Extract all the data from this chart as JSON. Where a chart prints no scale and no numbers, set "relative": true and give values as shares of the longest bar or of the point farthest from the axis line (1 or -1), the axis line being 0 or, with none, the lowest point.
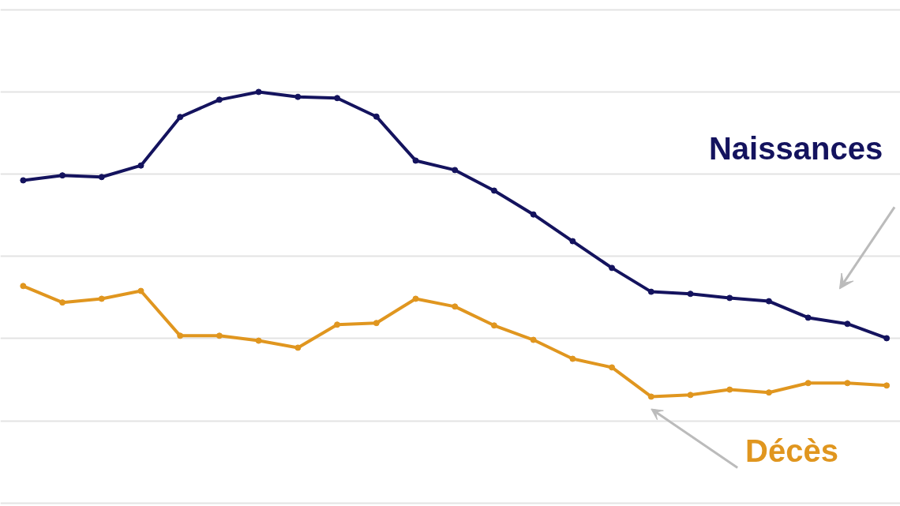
{
  "chart_data": {
    "type": "line",
    "relative": true,
    "grid": "y",
    "marker": "circle",
    "line_style": "solid",
    "categories": [
      null,
      null,
      null,
      null,
      null,
      null,
      null,
      null,
      null,
      null,
      null,
      null,
      null,
      null,
      null,
      null,
      null,
      null,
      null,
      null,
      null,
      null,
      null
    ],
    "series": [
      {
        "name": "Naissances",
        "color": "#14135e",
        "values": [
          0.785,
          0.797,
          0.793,
          0.821,
          0.939,
          0.981,
          1.0,
          0.988,
          0.985,
          0.94,
          0.833,
          0.81,
          0.76,
          0.702,
          0.637,
          0.572,
          0.514,
          0.509,
          0.499,
          0.491,
          0.451,
          0.436,
          0.401
        ]
      },
      {
        "name": "Décès",
        "color": "#e0961f",
        "values": [
          0.528,
          0.488,
          0.497,
          0.516,
          0.407,
          0.407,
          0.395,
          0.378,
          0.434,
          0.438,
          0.497,
          0.478,
          0.432,
          0.397,
          0.351,
          0.33,
          0.259,
          0.263,
          0.276,
          0.269,
          0.292,
          0.292,
          0.286
        ]
      }
    ]
  }
}
